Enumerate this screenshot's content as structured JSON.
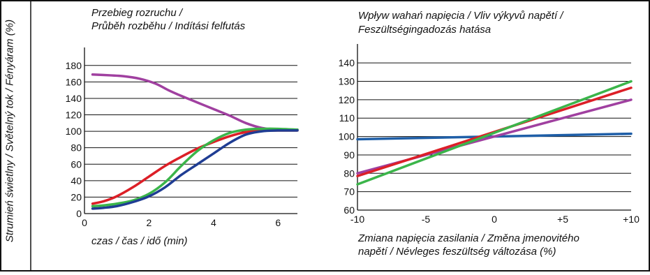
{
  "y_axis_label": "Strumień świetlny / Světelný tok / Fényáram (%)",
  "chart_data": [
    {
      "type": "line",
      "title_lines": [
        "Przebieg rozruchu /",
        "Průběh rozběhu / Indítási felfutás"
      ],
      "xlabel": "czas / čas / idő (min)",
      "xlim": [
        0,
        6.6
      ],
      "ylim": [
        0,
        190
      ],
      "x_ticks": [
        0,
        2,
        4,
        6
      ],
      "y_ticks": [
        0,
        20,
        40,
        60,
        80,
        100,
        120,
        140,
        160,
        180
      ],
      "x_tick_labels": [
        "0",
        "2",
        "4",
        "6"
      ],
      "y_tick_labels": [
        "0",
        "20",
        "40",
        "60",
        "80",
        "100",
        "120",
        "140",
        "160",
        "180"
      ],
      "grid": "horizontal",
      "series": [
        {
          "color": "#a040a0",
          "x": [
            0.25,
            0.8,
            1.2,
            1.7,
            2.2,
            2.6,
            3.0,
            3.5,
            4.0,
            4.5,
            5.0,
            5.5,
            6.0,
            6.6
          ],
          "y": [
            169,
            168,
            167,
            164,
            158,
            150,
            143,
            135,
            127,
            119,
            110,
            104,
            102,
            102
          ]
        },
        {
          "color": "#dc1f27",
          "x": [
            0.25,
            0.6,
            1.0,
            1.5,
            2.0,
            2.5,
            3.0,
            3.5,
            4.0,
            4.5,
            5.0,
            5.5,
            6.0,
            6.6
          ],
          "y": [
            12,
            15,
            21,
            32,
            45,
            58,
            69,
            79,
            87,
            94,
            99,
            101,
            101,
            101
          ]
        },
        {
          "color": "#3bb54a",
          "x": [
            0.25,
            0.6,
            1.0,
            1.5,
            2.0,
            2.5,
            3.0,
            3.5,
            4.0,
            4.5,
            5.0,
            5.5,
            6.0,
            6.6
          ],
          "y": [
            9,
            10,
            12,
            16,
            24,
            38,
            58,
            76,
            89,
            98,
            102,
            103,
            103,
            102
          ]
        },
        {
          "color": "#1f3d93",
          "x": [
            0.25,
            0.6,
            1.0,
            1.5,
            2.0,
            2.5,
            3.0,
            3.5,
            4.0,
            4.5,
            5.0,
            5.5,
            6.0,
            6.6
          ],
          "y": [
            6,
            7,
            9,
            14,
            21,
            32,
            47,
            60,
            73,
            86,
            96,
            100,
            101,
            101
          ]
        }
      ]
    },
    {
      "type": "line",
      "title_lines": [
        "Wpływ wahań napięcia / Vliv výkyvů napětí /",
        "Feszültségingadozás hatása"
      ],
      "xlabel_lines": [
        "Zmiana napięcia zasilania / Změna jmenovitého",
        "napětí / Névleges feszültség változása (%)"
      ],
      "xlim": [
        -10,
        10
      ],
      "ylim": [
        60,
        145
      ],
      "x_ticks": [
        -10,
        -5,
        0,
        5,
        10
      ],
      "y_ticks": [
        60,
        70,
        80,
        90,
        100,
        110,
        120,
        130,
        140
      ],
      "x_tick_labels": [
        "-10",
        "-5",
        "0",
        "+5",
        "+10"
      ],
      "y_tick_labels": [
        "60",
        "70",
        "80",
        "90",
        "100",
        "110",
        "120",
        "130",
        "140"
      ],
      "grid": "horizontal",
      "series": [
        {
          "color": "#1f5fa8",
          "x": [
            -10,
            10
          ],
          "y": [
            98.5,
            101.5
          ]
        },
        {
          "color": "#a040a0",
          "x": [
            -10,
            -5,
            0,
            5,
            10
          ],
          "y": [
            80,
            90,
            100,
            110,
            120
          ]
        },
        {
          "color": "#dc1f27",
          "x": [
            -10,
            10
          ],
          "y": [
            78.5,
            126.5
          ]
        },
        {
          "color": "#3bb54a",
          "x": [
            -10,
            10
          ],
          "y": [
            74,
            130
          ]
        }
      ]
    }
  ]
}
